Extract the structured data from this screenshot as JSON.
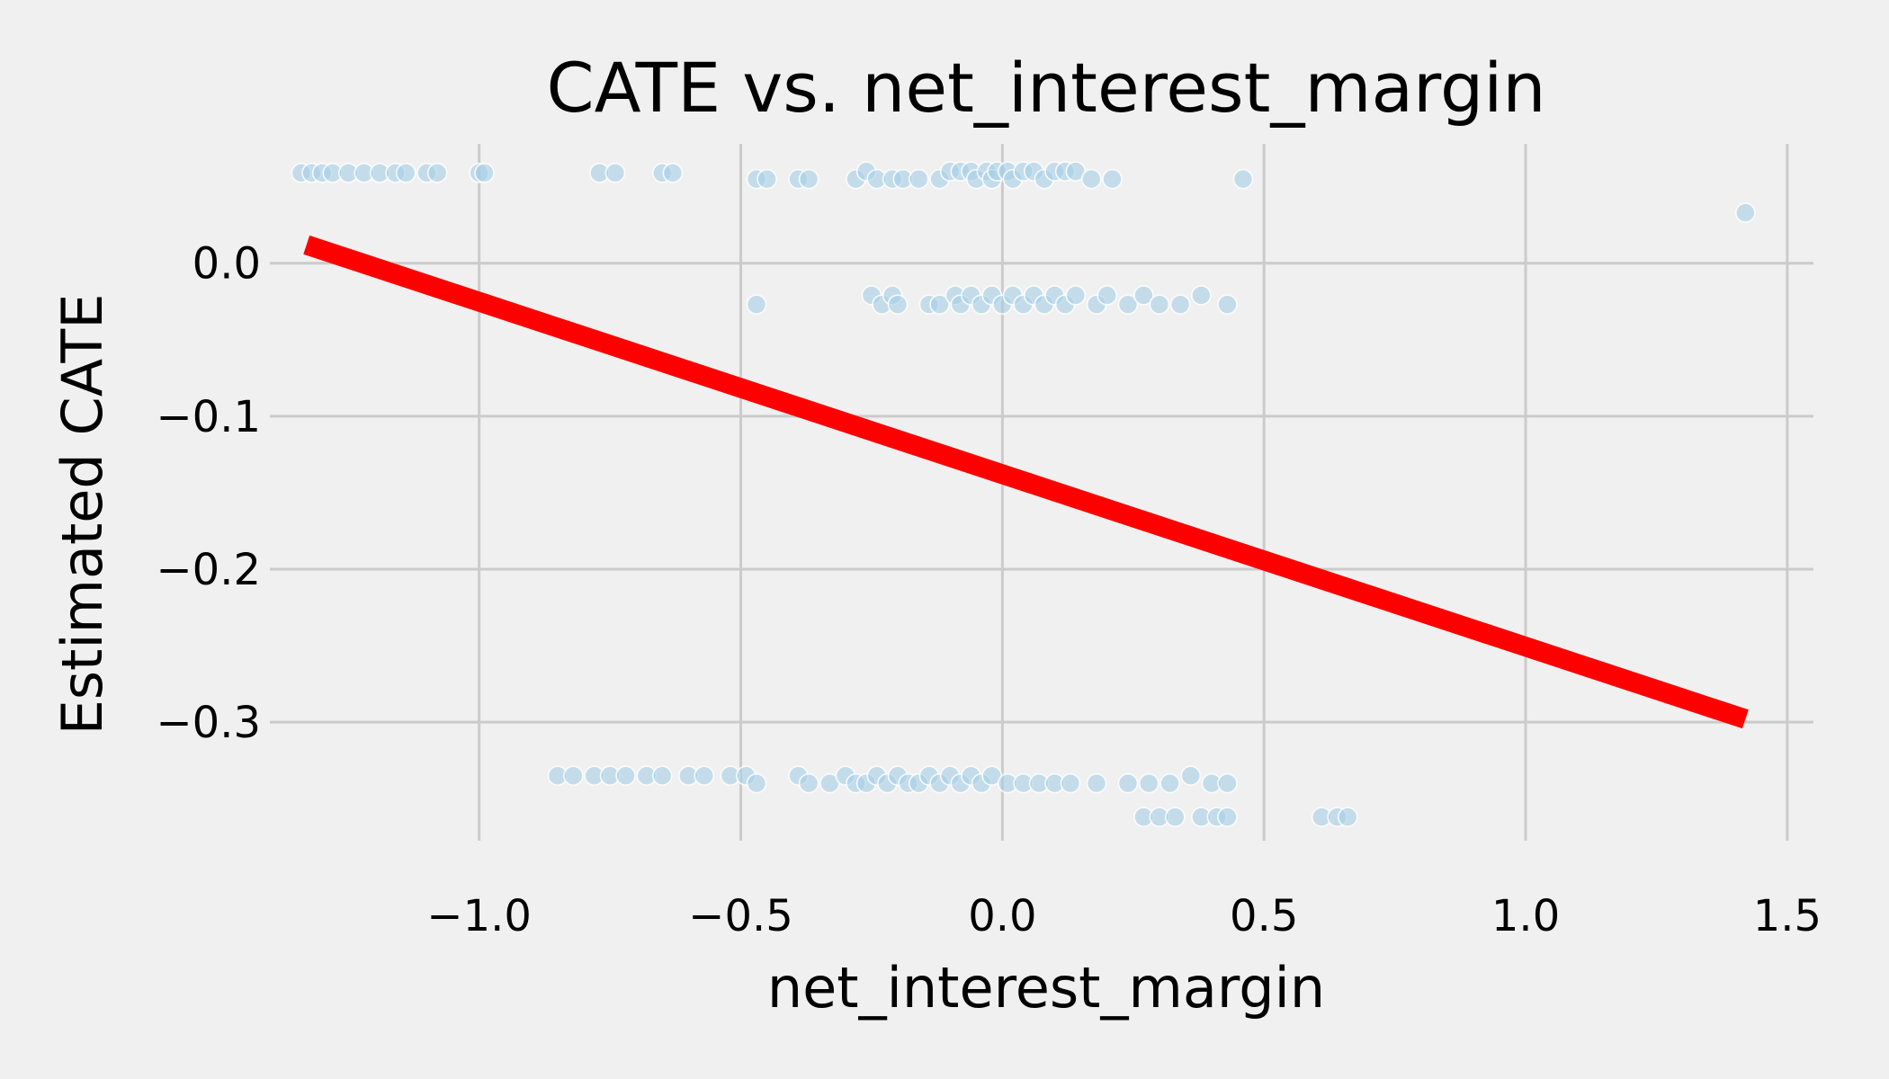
{
  "chart_data": {
    "type": "scatter",
    "title": "CATE vs. net_interest_margin",
    "xlabel": "net_interest_margin",
    "ylabel": "Estimated CATE",
    "xlim": [
      -1.4,
      1.55
    ],
    "ylim": [
      -0.3775,
      0.078
    ],
    "grid": true,
    "x_ticks": [
      -1.0,
      -0.5,
      0.0,
      0.5,
      1.0,
      1.5
    ],
    "x_tick_labels": [
      "−1.0",
      "−0.5",
      "0.0",
      "0.5",
      "1.0",
      "1.5"
    ],
    "y_ticks": [
      0.0,
      -0.1,
      -0.2,
      -0.3
    ],
    "y_tick_labels": [
      "0.0",
      "−0.1",
      "−0.2",
      "−0.3"
    ],
    "colors": {
      "background": "#f0f0f0",
      "points": "#a6cfe6",
      "fit_line": "#ff0000",
      "grid": "#cbcbcb"
    },
    "fit_line": {
      "x": [
        -1.33,
        1.42
      ],
      "y": [
        0.012,
        -0.298
      ]
    },
    "points": [
      [
        -1.34,
        0.059
      ],
      [
        -1.32,
        0.059
      ],
      [
        -1.3,
        0.059
      ],
      [
        -1.28,
        0.059
      ],
      [
        -1.25,
        0.059
      ],
      [
        -1.22,
        0.059
      ],
      [
        -1.19,
        0.059
      ],
      [
        -1.16,
        0.059
      ],
      [
        -1.14,
        0.059
      ],
      [
        -1.1,
        0.059
      ],
      [
        -1.08,
        0.059
      ],
      [
        -1.0,
        0.059
      ],
      [
        -0.99,
        0.059
      ],
      [
        -0.77,
        0.059
      ],
      [
        -0.74,
        0.059
      ],
      [
        -0.65,
        0.059
      ],
      [
        -0.63,
        0.059
      ],
      [
        -0.47,
        0.055
      ],
      [
        -0.45,
        0.055
      ],
      [
        -0.39,
        0.055
      ],
      [
        -0.37,
        0.055
      ],
      [
        -0.28,
        0.055
      ],
      [
        -0.26,
        0.06
      ],
      [
        -0.24,
        0.055
      ],
      [
        -0.21,
        0.055
      ],
      [
        -0.19,
        0.055
      ],
      [
        -0.16,
        0.055
      ],
      [
        -0.12,
        0.055
      ],
      [
        -0.1,
        0.06
      ],
      [
        -0.08,
        0.06
      ],
      [
        -0.06,
        0.06
      ],
      [
        -0.05,
        0.055
      ],
      [
        -0.03,
        0.06
      ],
      [
        -0.02,
        0.055
      ],
      [
        -0.01,
        0.06
      ],
      [
        0.01,
        0.06
      ],
      [
        0.02,
        0.055
      ],
      [
        0.04,
        0.06
      ],
      [
        0.06,
        0.06
      ],
      [
        0.08,
        0.055
      ],
      [
        0.1,
        0.06
      ],
      [
        0.12,
        0.06
      ],
      [
        0.14,
        0.06
      ],
      [
        0.17,
        0.055
      ],
      [
        0.21,
        0.055
      ],
      [
        0.46,
        0.055
      ],
      [
        1.42,
        0.033
      ],
      [
        -0.47,
        -0.027
      ],
      [
        -0.25,
        -0.021
      ],
      [
        -0.23,
        -0.027
      ],
      [
        -0.21,
        -0.021
      ],
      [
        -0.2,
        -0.027
      ],
      [
        -0.14,
        -0.027
      ],
      [
        -0.12,
        -0.027
      ],
      [
        -0.09,
        -0.021
      ],
      [
        -0.08,
        -0.027
      ],
      [
        -0.06,
        -0.021
      ],
      [
        -0.04,
        -0.027
      ],
      [
        -0.02,
        -0.021
      ],
      [
        0.0,
        -0.027
      ],
      [
        0.02,
        -0.021
      ],
      [
        0.04,
        -0.027
      ],
      [
        0.06,
        -0.021
      ],
      [
        0.08,
        -0.027
      ],
      [
        0.1,
        -0.021
      ],
      [
        0.12,
        -0.027
      ],
      [
        0.14,
        -0.021
      ],
      [
        0.18,
        -0.027
      ],
      [
        0.2,
        -0.021
      ],
      [
        0.24,
        -0.027
      ],
      [
        0.27,
        -0.021
      ],
      [
        0.3,
        -0.027
      ],
      [
        0.34,
        -0.027
      ],
      [
        0.38,
        -0.021
      ],
      [
        0.43,
        -0.027
      ],
      [
        -0.85,
        -0.335
      ],
      [
        -0.82,
        -0.335
      ],
      [
        -0.78,
        -0.335
      ],
      [
        -0.75,
        -0.335
      ],
      [
        -0.72,
        -0.335
      ],
      [
        -0.68,
        -0.335
      ],
      [
        -0.65,
        -0.335
      ],
      [
        -0.6,
        -0.335
      ],
      [
        -0.57,
        -0.335
      ],
      [
        -0.52,
        -0.335
      ],
      [
        -0.49,
        -0.335
      ],
      [
        -0.47,
        -0.34
      ],
      [
        -0.39,
        -0.335
      ],
      [
        -0.37,
        -0.34
      ],
      [
        -0.33,
        -0.34
      ],
      [
        -0.3,
        -0.335
      ],
      [
        -0.28,
        -0.34
      ],
      [
        -0.26,
        -0.34
      ],
      [
        -0.24,
        -0.335
      ],
      [
        -0.22,
        -0.34
      ],
      [
        -0.2,
        -0.335
      ],
      [
        -0.18,
        -0.34
      ],
      [
        -0.16,
        -0.34
      ],
      [
        -0.14,
        -0.335
      ],
      [
        -0.12,
        -0.34
      ],
      [
        -0.1,
        -0.335
      ],
      [
        -0.08,
        -0.34
      ],
      [
        -0.06,
        -0.335
      ],
      [
        -0.04,
        -0.34
      ],
      [
        -0.02,
        -0.335
      ],
      [
        0.01,
        -0.34
      ],
      [
        0.04,
        -0.34
      ],
      [
        0.07,
        -0.34
      ],
      [
        0.1,
        -0.34
      ],
      [
        0.13,
        -0.34
      ],
      [
        0.18,
        -0.34
      ],
      [
        0.24,
        -0.34
      ],
      [
        0.28,
        -0.34
      ],
      [
        0.32,
        -0.34
      ],
      [
        0.36,
        -0.335
      ],
      [
        0.4,
        -0.34
      ],
      [
        0.43,
        -0.34
      ],
      [
        0.27,
        -0.362
      ],
      [
        0.3,
        -0.362
      ],
      [
        0.33,
        -0.362
      ],
      [
        0.38,
        -0.362
      ],
      [
        0.41,
        -0.362
      ],
      [
        0.43,
        -0.362
      ],
      [
        0.61,
        -0.362
      ],
      [
        0.64,
        -0.362
      ],
      [
        0.66,
        -0.362
      ]
    ]
  }
}
